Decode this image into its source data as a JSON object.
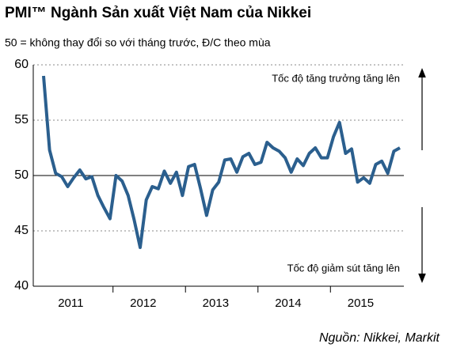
{
  "chart_data": {
    "type": "line",
    "title": "PMI™ Ngành Sản xuất Việt Nam của Nikkei",
    "subtitle": "50 = không thay đổi so với tháng trước, Đ/C theo mùa",
    "annotation_top": "Tốc độ tăng trưởng tăng lên",
    "annotation_bottom": "Tốc độ giảm sút tăng lên",
    "source": "Nguồn: Nikkei, Markit",
    "categories": [
      null,
      null,
      null,
      null,
      null,
      "2011",
      null,
      null,
      null,
      null,
      null,
      null,
      null,
      null,
      null,
      null,
      null,
      "2012",
      null,
      null,
      null,
      null,
      null,
      null,
      null,
      null,
      null,
      null,
      null,
      "2013",
      null,
      null,
      null,
      null,
      null,
      null,
      null,
      null,
      null,
      null,
      null,
      "2014",
      null,
      null,
      null,
      null,
      null,
      null,
      null,
      null,
      null,
      null,
      null,
      "2015",
      null,
      null,
      null,
      null,
      null,
      null
    ],
    "series": [
      {
        "name": "PMI",
        "color": "#2b5f8e",
        "values": [
          59,
          52.3,
          50.2,
          49.9,
          49.0,
          49.8,
          50.5,
          49.7,
          49.9,
          48.2,
          47.1,
          46.1,
          50,
          49.5,
          48.2,
          46,
          43.5,
          47.8,
          49,
          48.8,
          50.4,
          49.3,
          50.3,
          48.2,
          50.8,
          51,
          48.8,
          46.4,
          48.7,
          49.4,
          51.4,
          51.5,
          50.3,
          51.7,
          52,
          51.0,
          51.2,
          53,
          52.5,
          52.2,
          51.6,
          50.3,
          51.5,
          50.9,
          52,
          52.5,
          51.6,
          51.6,
          53.5,
          54.8,
          52.0,
          52.4,
          49.4,
          49.8,
          49.3,
          51.0,
          51.3,
          50.2,
          52.2,
          52.5
        ]
      }
    ],
    "ylim": [
      40,
      60
    ],
    "yticks": [
      40,
      45,
      50,
      55,
      60
    ],
    "grid": true,
    "hline": 50
  }
}
